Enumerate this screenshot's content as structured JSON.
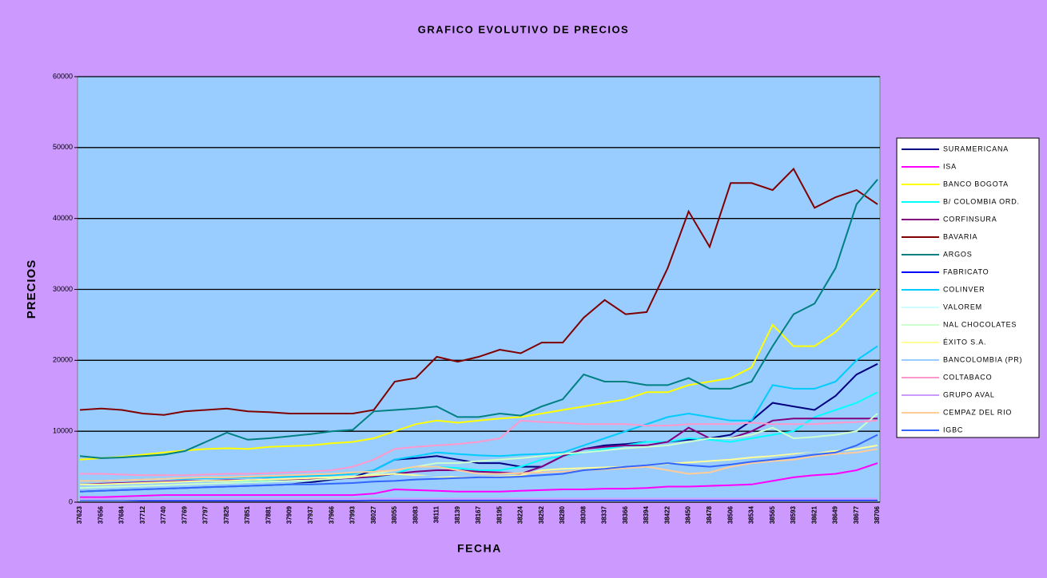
{
  "chart_data": {
    "type": "line",
    "title": "GRAFICO EVOLUTIVO DE PRECIOS",
    "x_label": "FECHA",
    "y_label": "PRECIOS",
    "categories": [
      "37623",
      "37656",
      "37684",
      "37712",
      "37740",
      "37769",
      "37797",
      "37825",
      "37851",
      "37881",
      "37909",
      "37937",
      "37966",
      "37993",
      "38027",
      "38055",
      "38083",
      "38111",
      "38139",
      "38167",
      "38195",
      "38224",
      "38252",
      "38280",
      "38308",
      "38337",
      "38366",
      "38394",
      "38422",
      "38450",
      "38478",
      "38506",
      "38534",
      "38565",
      "38593",
      "38621",
      "38649",
      "38677",
      "38706"
    ],
    "ylim": [
      0,
      60000
    ],
    "yticks": [
      0,
      10000,
      20000,
      30000,
      40000,
      50000,
      60000
    ],
    "grid": true,
    "legend": "right",
    "series": [
      {
        "name": "SURAMERICANA",
        "color": "#000080",
        "values": [
          1500,
          1600,
          1700,
          1800,
          1900,
          2000,
          2100,
          2200,
          2300,
          2400,
          2500,
          2800,
          3200,
          3500,
          4500,
          6000,
          6200,
          6500,
          6000,
          5500,
          5500,
          5000,
          5000,
          6500,
          7500,
          8000,
          8200,
          8500,
          8500,
          8800,
          9000,
          9500,
          11500,
          14000,
          13500,
          13000,
          15000,
          18000,
          19500
        ]
      },
      {
        "name": "ISA",
        "color": "#ff00ff",
        "values": [
          700,
          700,
          800,
          900,
          1000,
          1000,
          1000,
          1000,
          1000,
          1000,
          1000,
          1000,
          1000,
          1000,
          1200,
          1800,
          1700,
          1600,
          1500,
          1500,
          1500,
          1600,
          1700,
          1800,
          1800,
          1900,
          1900,
          2000,
          2200,
          2200,
          2300,
          2400,
          2500,
          3000,
          3500,
          3800,
          4000,
          4500,
          5500
        ]
      },
      {
        "name": "BANCO BOGOTA",
        "color": "#ffff00",
        "values": [
          6000,
          6200,
          6400,
          6700,
          7000,
          7300,
          7500,
          7600,
          7500,
          7800,
          7900,
          8000,
          8300,
          8500,
          9000,
          10000,
          11000,
          11500,
          11200,
          11500,
          11800,
          12000,
          12500,
          13000,
          13500,
          14000,
          14500,
          15500,
          15500,
          16500,
          17000,
          17500,
          19000,
          25000,
          22000,
          22000,
          24000,
          27000,
          30000
        ]
      },
      {
        "name": "B/ COLOMBIA ORD.",
        "color": "#00ffff",
        "values": [
          2500,
          2500,
          2600,
          2700,
          2800,
          2900,
          3000,
          3000,
          3000,
          3100,
          3200,
          3300,
          3400,
          3500,
          3500,
          4000,
          5000,
          5000,
          4800,
          4500,
          4500,
          5000,
          6000,
          6500,
          7000,
          7500,
          8000,
          8500,
          8500,
          9000,
          8800,
          8500,
          9000,
          9500,
          10000,
          12000,
          13000,
          14000,
          15500
        ]
      },
      {
        "name": "CORFINSURA",
        "color": "#800080",
        "values": [
          2500,
          2600,
          2700,
          2800,
          2900,
          3000,
          3000,
          3100,
          3100,
          3200,
          3200,
          3300,
          3300,
          3400,
          3600,
          4000,
          4300,
          4500,
          4500,
          4300,
          4200,
          4000,
          5000,
          6500,
          7500,
          7800,
          8000,
          8000,
          8500,
          10500,
          9000,
          9000,
          10000,
          11500,
          11800,
          11800,
          11800,
          11800,
          11800
        ]
      },
      {
        "name": "BAVARIA",
        "color": "#800000",
        "values": [
          13000,
          13200,
          13000,
          12500,
          12300,
          12800,
          13000,
          13200,
          12800,
          12700,
          12500,
          12500,
          12500,
          12500,
          13000,
          17000,
          17500,
          20500,
          19800,
          20500,
          21500,
          21000,
          22500,
          22500,
          26000,
          28500,
          26500,
          26800,
          33000,
          41000,
          36000,
          45000,
          45000,
          44000,
          47000,
          41500,
          43000,
          44000,
          42000
        ]
      },
      {
        "name": "ARGOS",
        "color": "#008080",
        "values": [
          6500,
          6200,
          6300,
          6500,
          6700,
          7200,
          8500,
          9800,
          8800,
          9000,
          9300,
          9600,
          10000,
          10200,
          12800,
          13000,
          13200,
          13500,
          12000,
          12000,
          12500,
          12200,
          13500,
          14500,
          18000,
          17000,
          17000,
          16500,
          16500,
          17500,
          16000,
          16000,
          17000,
          22000,
          26500,
          28000,
          33000,
          42000,
          45500
        ]
      },
      {
        "name": "FABRICATO",
        "color": "#0000ff",
        "values": [
          300,
          300,
          300,
          250,
          250,
          250,
          250,
          250,
          250,
          250,
          250,
          250,
          250,
          250,
          300,
          300,
          300,
          300,
          300,
          300,
          300,
          300,
          300,
          300,
          300,
          300,
          300,
          300,
          300,
          300,
          300,
          300,
          300,
          300,
          300,
          300,
          300,
          300,
          300
        ]
      },
      {
        "name": "COLINVER",
        "color": "#00ccff",
        "values": [
          3000,
          3000,
          3100,
          3200,
          3300,
          3300,
          3400,
          3400,
          3500,
          3500,
          3600,
          3700,
          3800,
          4000,
          4500,
          6000,
          6500,
          7000,
          6800,
          6600,
          6500,
          6700,
          6800,
          7000,
          8000,
          9000,
          10000,
          11000,
          12000,
          12500,
          12000,
          11500,
          11500,
          16500,
          16000,
          16000,
          17000,
          20000,
          22000
        ]
      },
      {
        "name": "VALOREM",
        "color": "#ccffff",
        "values": [
          400,
          400,
          400,
          400,
          400,
          400,
          400,
          400,
          400,
          400,
          400,
          400,
          400,
          400,
          450,
          450,
          450,
          450,
          450,
          450,
          450,
          450,
          450,
          450,
          450,
          450,
          450,
          450,
          450,
          450,
          450,
          450,
          450,
          450,
          450,
          450,
          450,
          450,
          450
        ]
      },
      {
        "name": "NAL CHOCOLATES",
        "color": "#ccffcc",
        "values": [
          2000,
          2100,
          2200,
          2300,
          2400,
          2500,
          2600,
          2700,
          2800,
          2900,
          3000,
          3100,
          3300,
          3500,
          4000,
          4500,
          5000,
          5500,
          5500,
          5800,
          6000,
          6200,
          6500,
          6800,
          7000,
          7300,
          7600,
          7800,
          8000,
          8500,
          9000,
          9000,
          9500,
          10500,
          9000,
          9200,
          9500,
          10000,
          12500
        ]
      },
      {
        "name": "ÉXITO S.A.",
        "color": "#ffff99",
        "values": [
          2500,
          2500,
          2600,
          2700,
          2800,
          2900,
          3000,
          3000,
          3100,
          3200,
          3300,
          3400,
          3500,
          3600,
          3800,
          4000,
          3800,
          3600,
          3500,
          3500,
          3600,
          3800,
          4500,
          4700,
          4800,
          4900,
          5000,
          5200,
          5400,
          5600,
          5800,
          6000,
          6300,
          6500,
          6800,
          7000,
          7200,
          7500,
          8000
        ]
      },
      {
        "name": "BANCOLOMBIA (PR)",
        "color": "#99ccff",
        "values": [
          1500,
          1600,
          1700,
          1800,
          1900,
          2000,
          2100,
          2200,
          2300,
          2400,
          2500,
          2600,
          2700,
          2900,
          3200,
          3500,
          3600,
          3700,
          3800,
          3900,
          4000,
          4100,
          4200,
          4300,
          4500,
          4600,
          4700,
          4800,
          5000,
          5200,
          5400,
          5700,
          6000,
          6300,
          6600,
          7000,
          7500,
          8200,
          9000
        ]
      },
      {
        "name": "COLTABACO",
        "color": "#ff99cc",
        "values": [
          4000,
          4000,
          3900,
          3800,
          3800,
          3800,
          3900,
          4000,
          4000,
          4100,
          4200,
          4300,
          4500,
          5000,
          6000,
          7500,
          7800,
          8000,
          8200,
          8500,
          9000,
          11500,
          11300,
          11200,
          11000,
          11000,
          11000,
          10800,
          10800,
          11000,
          11000,
          11000,
          11200,
          11000,
          11000,
          11000,
          11200,
          11300,
          11500
        ]
      },
      {
        "name": "GRUPO AVAL",
        "color": "#cc99ff",
        "values": [
          500,
          500,
          500,
          500,
          500,
          500,
          500,
          500,
          500,
          500,
          500,
          500,
          500,
          500,
          500,
          500,
          500,
          500,
          500,
          500,
          500,
          500,
          500,
          500,
          500,
          500,
          500,
          500,
          500,
          500,
          500,
          500,
          500,
          500,
          500,
          500,
          500,
          500,
          500
        ]
      },
      {
        "name": "CEMPAZ DEL RIO",
        "color": "#ffcc99",
        "values": [
          3000,
          3000,
          3100,
          3200,
          3300,
          3400,
          3500,
          3500,
          3600,
          3700,
          3800,
          3900,
          4000,
          4200,
          4300,
          4500,
          5000,
          5000,
          4500,
          4000,
          4000,
          4100,
          4200,
          4300,
          4500,
          4600,
          4800,
          5000,
          4500,
          4000,
          4200,
          5000,
          5500,
          5800,
          6000,
          6500,
          6800,
          7000,
          7500
        ]
      },
      {
        "name": "IGBC",
        "color": "#3366ff",
        "values": [
          1500,
          1600,
          1700,
          1800,
          1900,
          2000,
          2100,
          2200,
          2300,
          2400,
          2500,
          2500,
          2600,
          2700,
          2900,
          3000,
          3200,
          3300,
          3400,
          3500,
          3500,
          3600,
          3800,
          4000,
          4500,
          4700,
          5000,
          5200,
          5500,
          5200,
          5000,
          5300,
          5700,
          6000,
          6300,
          6700,
          7000,
          8000,
          9500
        ]
      }
    ]
  }
}
